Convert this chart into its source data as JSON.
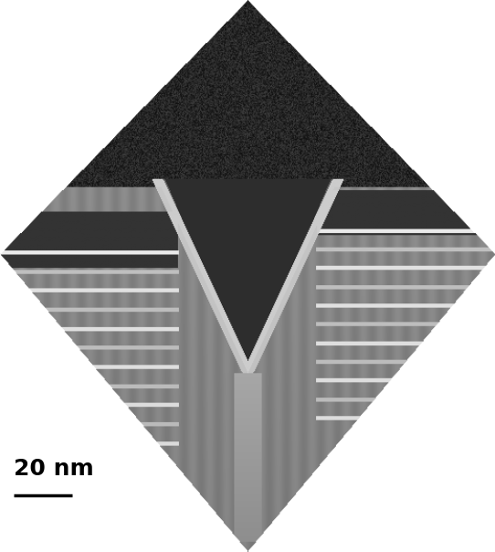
{
  "title": "",
  "scale_bar_label": "20 nm",
  "label_fontsize": 18,
  "label_fontweight": "bold",
  "background_color": "#ffffff",
  "figure_width": 5.42,
  "figure_height": 6.04,
  "dpi": 100
}
